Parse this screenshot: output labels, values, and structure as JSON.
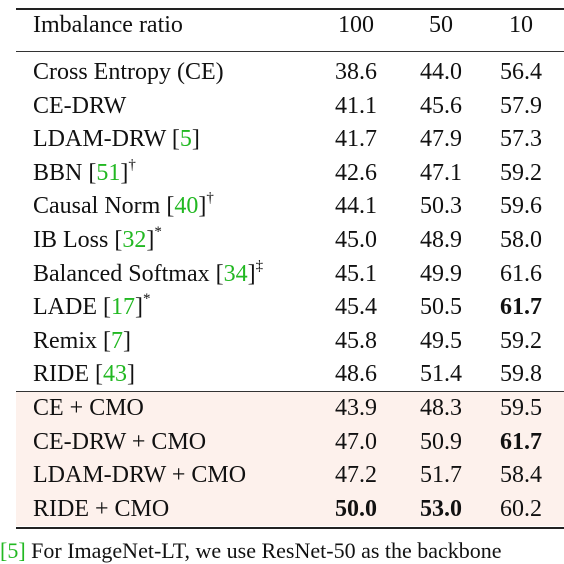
{
  "header": {
    "label": "Imbalance ratio",
    "cols": [
      "100",
      "50",
      "10"
    ]
  },
  "rows": [
    {
      "name": "Cross Entropy (CE)",
      "cite": "",
      "mark": "",
      "v": [
        "38.6",
        "44.0",
        "56.4"
      ],
      "bold": [
        false,
        false,
        false
      ]
    },
    {
      "name": "CE-DRW",
      "cite": "",
      "mark": "",
      "v": [
        "41.1",
        "45.6",
        "57.9"
      ],
      "bold": [
        false,
        false,
        false
      ]
    },
    {
      "name": "LDAM-DRW",
      "cite": "5",
      "mark": "",
      "v": [
        "41.7",
        "47.9",
        "57.3"
      ],
      "bold": [
        false,
        false,
        false
      ]
    },
    {
      "name": "BBN",
      "cite": "51",
      "mark": "†",
      "v": [
        "42.6",
        "47.1",
        "59.2"
      ],
      "bold": [
        false,
        false,
        false
      ]
    },
    {
      "name": "Causal Norm",
      "cite": "40",
      "mark": "†",
      "v": [
        "44.1",
        "50.3",
        "59.6"
      ],
      "bold": [
        false,
        false,
        false
      ]
    },
    {
      "name": "IB Loss",
      "cite": "32",
      "mark": "*",
      "v": [
        "45.0",
        "48.9",
        "58.0"
      ],
      "bold": [
        false,
        false,
        false
      ]
    },
    {
      "name": "Balanced Softmax",
      "cite": "34",
      "mark": "‡",
      "v": [
        "45.1",
        "49.9",
        "61.6"
      ],
      "bold": [
        false,
        false,
        false
      ]
    },
    {
      "name": "LADE",
      "cite": "17",
      "mark": "*",
      "v": [
        "45.4",
        "50.5",
        "61.7"
      ],
      "bold": [
        false,
        false,
        true
      ]
    },
    {
      "name": "Remix",
      "cite": "7",
      "mark": "",
      "v": [
        "45.8",
        "49.5",
        "59.2"
      ],
      "bold": [
        false,
        false,
        false
      ]
    },
    {
      "name": "RIDE",
      "cite": "43",
      "mark": "",
      "v": [
        "48.6",
        "51.4",
        "59.8"
      ],
      "bold": [
        false,
        false,
        false
      ]
    }
  ],
  "cmo_rows": [
    {
      "name": "CE + CMO",
      "v": [
        "43.9",
        "48.3",
        "59.5"
      ],
      "bold": [
        false,
        false,
        false
      ]
    },
    {
      "name": "CE-DRW + CMO",
      "v": [
        "47.0",
        "50.9",
        "61.7"
      ],
      "bold": [
        false,
        false,
        true
      ]
    },
    {
      "name": "LDAM-DRW + CMO",
      "v": [
        "47.2",
        "51.7",
        "58.4"
      ],
      "bold": [
        false,
        false,
        false
      ]
    },
    {
      "name": "RIDE + CMO",
      "v": [
        "50.0",
        "53.0",
        "60.2"
      ],
      "bold": [
        true,
        true,
        false
      ]
    }
  ],
  "footer": {
    "cite": "[5]",
    "text": "For ImageNet-LT, we use ResNet-50 as the backbone"
  },
  "colors": {
    "citation": "#22b822",
    "cmo_shade": "#fdf1ec"
  }
}
